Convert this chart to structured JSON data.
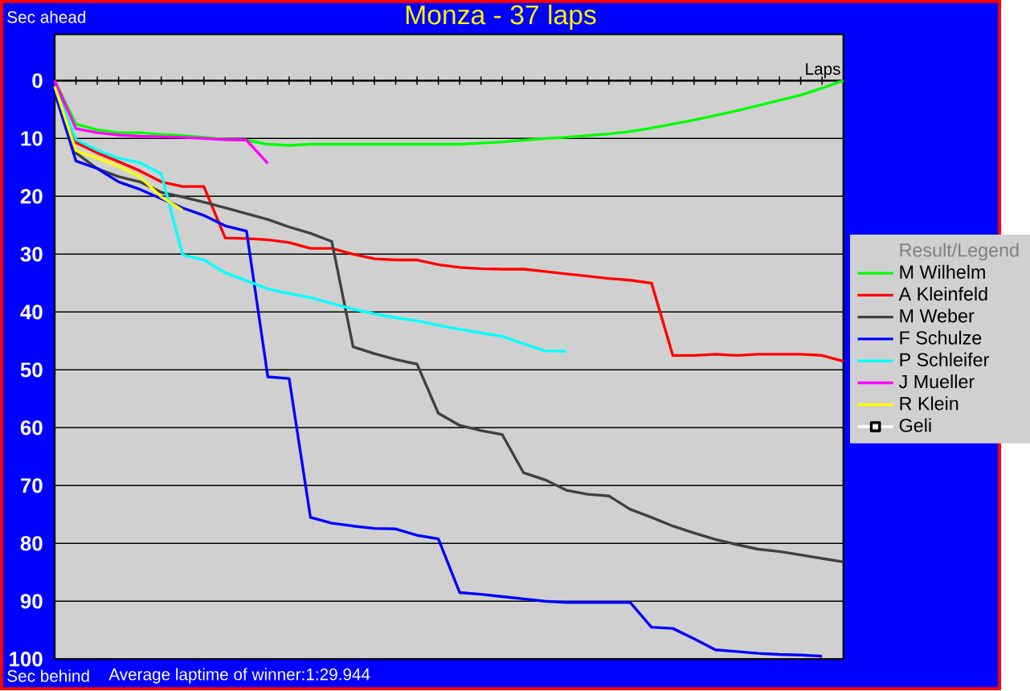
{
  "chart_data": {
    "type": "line",
    "title": "Monza - 37 laps",
    "ylabel": "Sec ahead",
    "xlabel": "Laps",
    "legend_title": "Result/Legend",
    "annotations": [
      "Sec behind",
      "Average laptime of winner:1:29.944"
    ],
    "categories": [
      null,
      null,
      null,
      null,
      null,
      null,
      null,
      null,
      null,
      null,
      null,
      null,
      null,
      null,
      null,
      null,
      null,
      null,
      null,
      null,
      null,
      null,
      null,
      null,
      null,
      null,
      null,
      null,
      null,
      null,
      null,
      null,
      null,
      null,
      null,
      null,
      null,
      null
    ],
    "ylim": [
      100,
      -8
    ],
    "yticks": [
      0,
      10,
      20,
      30,
      40,
      50,
      60,
      70,
      80,
      90,
      100
    ],
    "tick_labels": "y",
    "grid": "y",
    "legend": "right",
    "series": [
      {
        "name": "M Wilhelm",
        "color": "#00ff00",
        "values": [
          0,
          7.5,
          8.5,
          9,
          9,
          9.3,
          9.5,
          9.8,
          10.2,
          10.3,
          11,
          11.2,
          11,
          11,
          11,
          11,
          11,
          11,
          11,
          11,
          10.8,
          10.6,
          10.3,
          10,
          9.8,
          9.5,
          9.2,
          8.8,
          8.2,
          7.5,
          6.8,
          6,
          5.2,
          4.3,
          3.4,
          2.5,
          1.3,
          0
        ]
      },
      {
        "name": "A Kleinfeld",
        "color": "#ff0000",
        "values": [
          0.5,
          10.7,
          12.5,
          14,
          15.6,
          17.5,
          18.3,
          18.3,
          27.2,
          27.3,
          27.5,
          28,
          29,
          29,
          30,
          30.8,
          31,
          31,
          31.8,
          32.3,
          32.5,
          32.6,
          32.6,
          33,
          33.4,
          33.8,
          34.2,
          34.5,
          35,
          47.5,
          47.5,
          47.3,
          47.5,
          47.3,
          47.3,
          47.3,
          47.5,
          48.5
        ]
      },
      {
        "name": "M Weber",
        "color": "#404040",
        "values": [
          0,
          12.5,
          15.2,
          16.6,
          17.5,
          19.3,
          20.1,
          21,
          22,
          23,
          24,
          25.3,
          26.4,
          27.8,
          46,
          47.2,
          48.2,
          49,
          57.5,
          59.6,
          60.5,
          61.2,
          67.8,
          69,
          70.8,
          71.5,
          71.8,
          74.1,
          75.5,
          77,
          78.2,
          79.3,
          80.2,
          81,
          81.4,
          82,
          82.6,
          83.2
        ]
      },
      {
        "name": "F Schulze",
        "color": "#0000ff",
        "values": [
          2,
          13.9,
          15.2,
          17.5,
          18.8,
          20.4,
          22,
          23.3,
          25.1,
          26,
          51.2,
          51.5,
          75.5,
          76.5,
          77,
          77.4,
          77.5,
          78.6,
          79.2,
          88.5,
          88.8,
          89.2,
          89.6,
          90,
          90.2,
          90.2,
          90.2,
          90.2,
          94.5,
          94.7,
          96.5,
          98.4,
          98.7,
          99,
          99.2,
          99.3,
          99.5,
          null
        ]
      },
      {
        "name": "P Schleifer",
        "color": "#00ffff",
        "values": [
          1,
          10.2,
          12,
          13.4,
          14.2,
          16.1,
          30.1,
          31,
          33.2,
          34.6,
          36,
          36.8,
          37.5,
          38.5,
          39.5,
          40.3,
          41,
          41.5,
          42.3,
          43,
          43.6,
          44.2,
          45.5,
          46.7,
          46.8,
          null,
          null,
          null,
          null,
          null,
          null,
          null,
          null,
          null,
          null,
          null,
          null,
          null
        ]
      },
      {
        "name": "J Mueller",
        "color": "#ff00ff",
        "values": [
          0,
          8.3,
          9,
          9.4,
          9.6,
          9.7,
          9.8,
          10,
          10.2,
          10.3,
          14.3,
          null,
          null,
          null,
          null,
          null,
          null,
          null,
          null,
          null,
          null,
          null,
          null,
          null,
          null,
          null,
          null,
          null,
          null,
          null,
          null,
          null,
          null,
          null,
          null,
          null,
          null,
          null
        ]
      },
      {
        "name": "R Klein",
        "color": "#ffff00",
        "values": [
          1,
          12.1,
          13.4,
          14.8,
          16.6,
          20.1,
          22.4,
          null,
          null,
          null,
          null,
          null,
          null,
          null,
          null,
          null,
          null,
          null,
          null,
          null,
          null,
          null,
          null,
          null,
          null,
          null,
          null,
          null,
          null,
          null,
          null,
          null,
          null,
          null,
          null,
          null,
          null,
          null
        ]
      },
      {
        "name": "Geli",
        "color": "#ffffff",
        "marker": "square",
        "values": [
          null,
          null,
          null,
          null,
          null,
          null,
          null,
          null,
          null,
          null,
          null,
          null,
          null,
          null,
          null,
          null,
          null,
          null,
          null,
          null,
          null,
          null,
          null,
          null,
          null,
          null,
          null,
          null,
          null,
          null,
          null,
          null,
          null,
          null,
          null,
          null,
          null,
          null
        ]
      }
    ]
  }
}
